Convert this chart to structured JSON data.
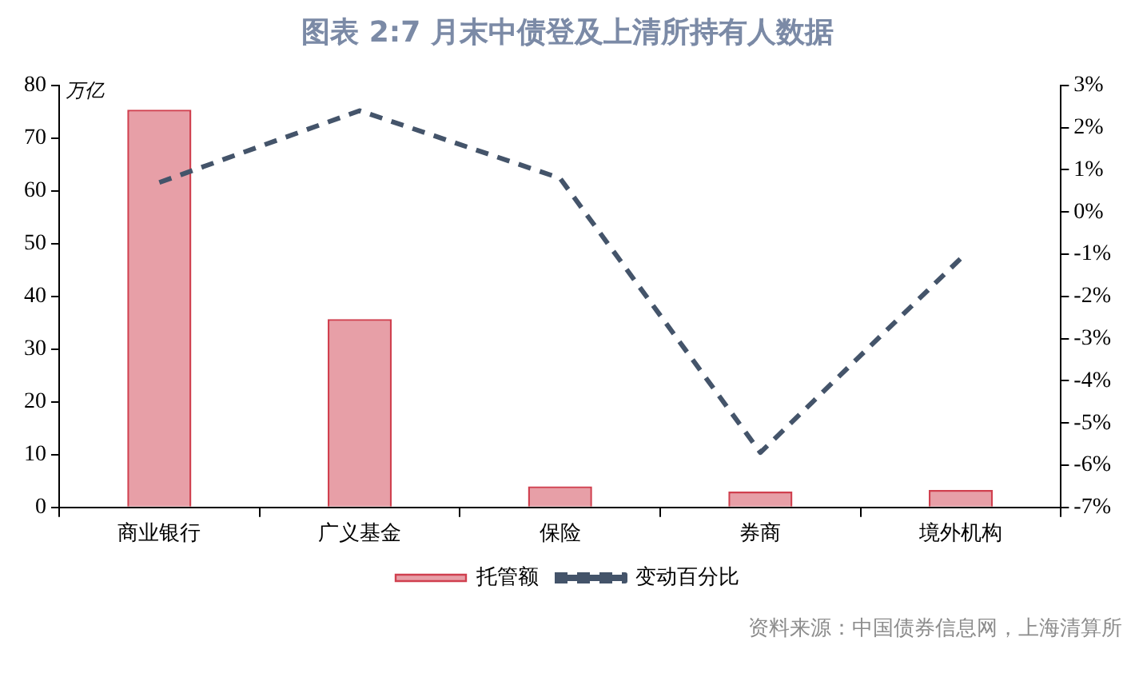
{
  "chart_data": {
    "type": "bar",
    "title": "图表 2:7 月末中债登及上清所持有人数据",
    "ylabel": "万亿",
    "categories": [
      "商业银行",
      "广义基金",
      "保险",
      "券商",
      "境外机构"
    ],
    "series": [
      {
        "name": "托管额",
        "color": "#d0404f",
        "values": [
          75.4,
          35.7,
          4.0,
          3.0,
          3.3
        ]
      },
      {
        "name": "变动百分比",
        "type": "line",
        "axis": "y2",
        "color": "#44546a",
        "line_style": "dashed",
        "values": [
          0.7,
          2.4,
          0.8,
          -5.7,
          -1.1
        ]
      }
    ],
    "ylim": [
      0,
      80
    ],
    "yticks": [
      0,
      10,
      20,
      30,
      40,
      50,
      60,
      70,
      80
    ],
    "y2lim": [
      -7,
      3
    ],
    "y2ticks": [
      {
        "value": 3,
        "label": "3%"
      },
      {
        "value": 2,
        "label": "2%"
      },
      {
        "value": 1,
        "label": "1%"
      },
      {
        "value": 0,
        "label": "0%"
      },
      {
        "value": -1,
        "label": "-1%"
      },
      {
        "value": -2,
        "label": "-2%"
      },
      {
        "value": -3,
        "label": "-3%"
      },
      {
        "value": -4,
        "label": "-4%"
      },
      {
        "value": -5,
        "label": "-5%"
      },
      {
        "value": -6,
        "label": "-6%"
      },
      {
        "value": -7,
        "label": "-7%"
      }
    ],
    "grid": false,
    "legend": "bottom",
    "marker": "none",
    "annotations": [
      "资料来源：中国债券信息网，上海清算所"
    ]
  }
}
